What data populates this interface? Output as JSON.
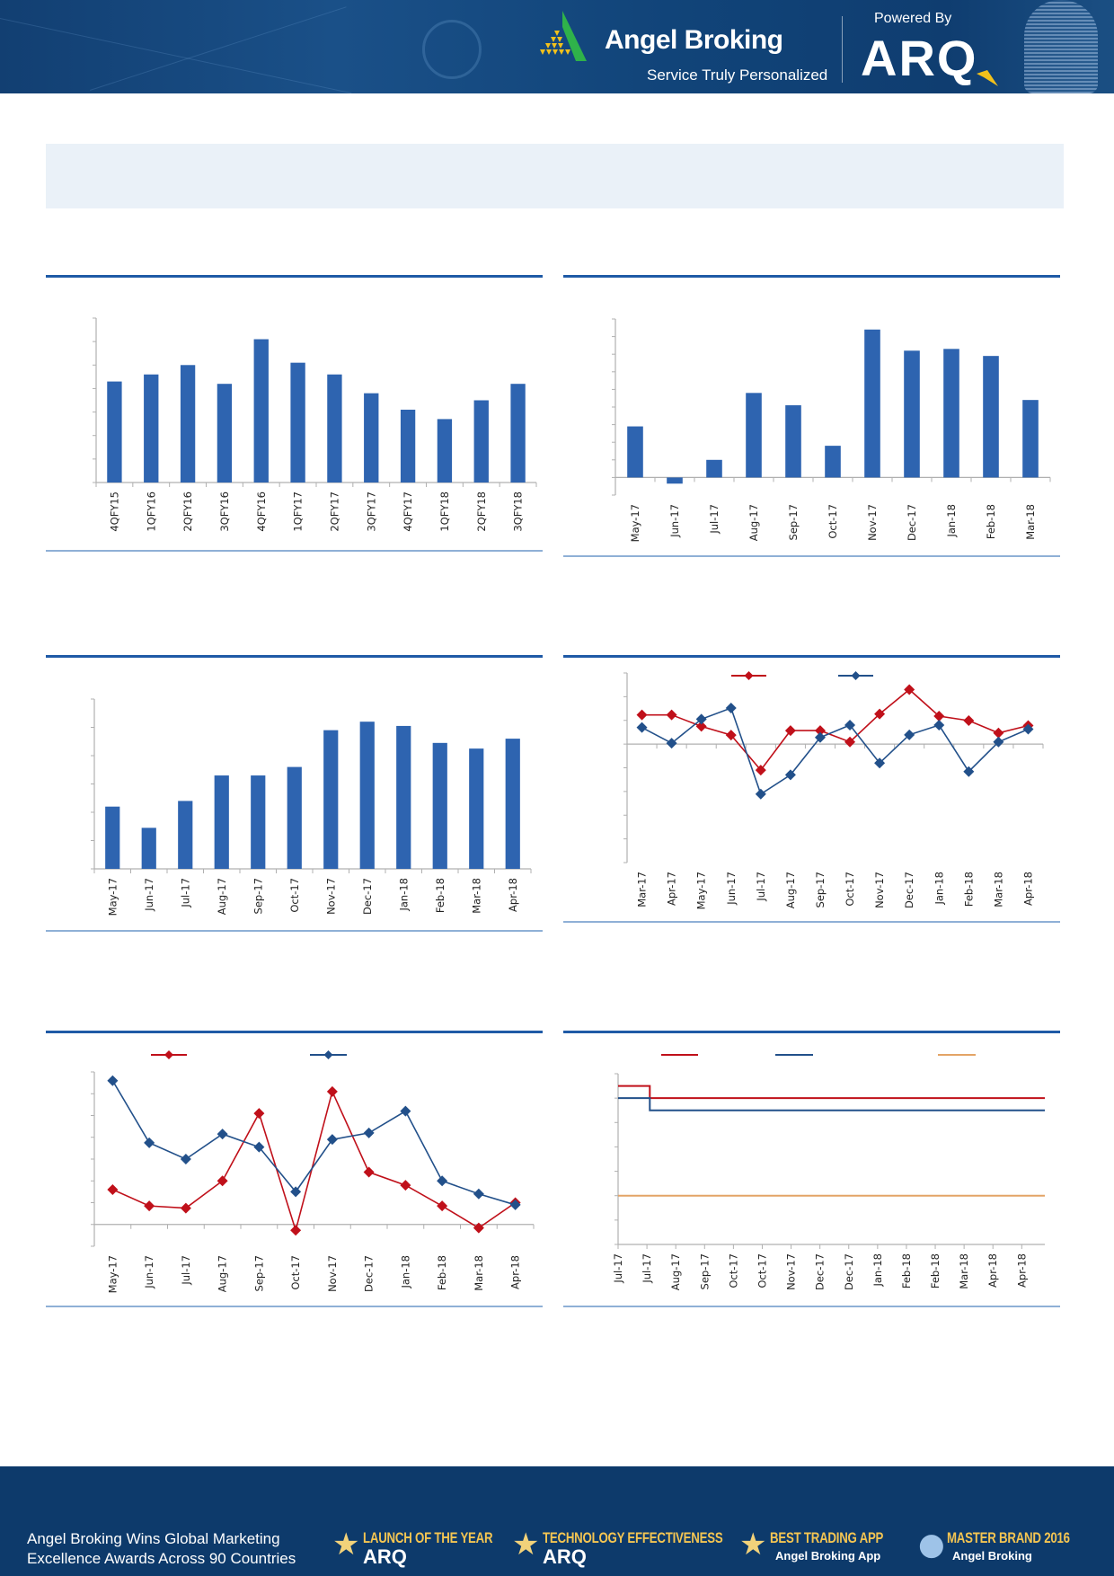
{
  "header": {
    "brand": "Angel Broking",
    "tagline": "Service Truly Personalized",
    "powered_by": "Powered By",
    "product": "ARQ"
  },
  "colors": {
    "header_bg": "#123f72",
    "bar": "#2e64b0",
    "series_red": "#c0101a",
    "series_blue": "#22508a",
    "series_orange": "#e3a466",
    "rule": "#1f5aa6",
    "summary_box": "#eaf1f8"
  },
  "chart_data": [
    {
      "type": "bar",
      "categories": [
        "4QFY15",
        "1QFY16",
        "2QFY16",
        "3QFY16",
        "4QFY16",
        "1QFY17",
        "2QFY17",
        "3QFY17",
        "4QFY17",
        "1QFY18",
        "2QFY18",
        "3QFY18"
      ],
      "values": [
        4.3,
        4.6,
        5.0,
        4.2,
        6.1,
        5.1,
        4.6,
        3.8,
        3.1,
        2.7,
        3.5,
        4.2
      ],
      "ylim": [
        0,
        7
      ],
      "grid": false
    },
    {
      "type": "bar",
      "categories": [
        "May-17",
        "Jun-17",
        "Jul-17",
        "Aug-17",
        "Sep-17",
        "Oct-17",
        "Nov-17",
        "Dec-17",
        "Jan-18",
        "Feb-18",
        "Mar-18"
      ],
      "values": [
        2.9,
        -0.35,
        1.0,
        4.8,
        4.1,
        1.8,
        8.4,
        7.2,
        7.3,
        6.9,
        4.4
      ],
      "ylim": [
        -1,
        9
      ],
      "grid": false
    },
    {
      "type": "bar",
      "categories": [
        "May-17",
        "Jun-17",
        "Jul-17",
        "Aug-17",
        "Sep-17",
        "Oct-17",
        "Nov-17",
        "Dec-17",
        "Jan-18",
        "Feb-18",
        "Mar-18",
        "Apr-18"
      ],
      "values": [
        2.2,
        1.45,
        2.4,
        3.3,
        3.3,
        3.6,
        4.9,
        5.2,
        5.05,
        4.45,
        4.25,
        4.6
      ],
      "ylim": [
        0,
        6
      ],
      "grid": false
    },
    {
      "type": "line",
      "categories": [
        "Mar-17",
        "Apr-17",
        "May-17",
        "Jun-17",
        "Jul-17",
        "Aug-17",
        "Sep-17",
        "Oct-17",
        "Nov-17",
        "Dec-17",
        "Jan-18",
        "Feb-18",
        "Mar-18",
        "Apr-18"
      ],
      "series": [
        {
          "color": "#c0101a",
          "values": [
            1.23,
            1.23,
            0.75,
            0.38,
            -1.1,
            0.57,
            0.57,
            0.09,
            1.27,
            2.3,
            1.18,
            0.99,
            0.47,
            0.78
          ]
        },
        {
          "color": "#22508a",
          "values": [
            0.7,
            0.04,
            1.05,
            1.52,
            -2.11,
            -1.3,
            0.28,
            0.8,
            -0.8,
            0.39,
            0.8,
            -1.16,
            0.09,
            0.63
          ]
        }
      ],
      "ylim": [
        -5,
        3
      ],
      "legend": "top-center",
      "markers": "diamond",
      "grid": false
    },
    {
      "type": "line",
      "categories": [
        "May-17",
        "Jun-17",
        "Jul-17",
        "Aug-17",
        "Sep-17",
        "Oct-17",
        "Nov-17",
        "Dec-17",
        "Jan-18",
        "Feb-18",
        "Mar-18",
        "Apr-18"
      ],
      "series": [
        {
          "color": "#c0101a",
          "values": [
            1.6,
            0.85,
            0.75,
            2.0,
            5.1,
            -0.27,
            6.1,
            2.4,
            1.8,
            0.85,
            -0.16,
            1.0
          ]
        },
        {
          "color": "#22508a",
          "values": [
            6.6,
            3.75,
            3.0,
            4.15,
            3.55,
            1.5,
            3.9,
            4.2,
            5.2,
            2.0,
            1.4,
            0.9
          ]
        }
      ],
      "ylim": [
        -1,
        7
      ],
      "legend": "top-center",
      "markers": "diamond",
      "grid": false
    },
    {
      "type": "line",
      "categories": [
        "Jul-17",
        "Jul-17",
        "Aug-17",
        "Sep-17",
        "Oct-17",
        "Oct-17",
        "Nov-17",
        "Dec-17",
        "Dec-17",
        "Jan-18",
        "Feb-18",
        "Feb-18",
        "Mar-18",
        "Apr-18",
        "Apr-18"
      ],
      "series": [
        {
          "color": "#c0101a",
          "values": [
            6.5,
            6.0,
            6.0,
            6.0,
            6.0,
            6.0,
            6.0,
            6.0,
            6.0,
            6.0,
            6.0,
            6.0,
            6.0,
            6.0,
            6.0
          ]
        },
        {
          "color": "#22508a",
          "values": [
            6.0,
            5.5,
            5.5,
            5.5,
            5.5,
            5.5,
            5.5,
            5.5,
            5.5,
            5.5,
            5.5,
            5.5,
            5.5,
            5.5,
            5.5
          ]
        },
        {
          "color": "#e3a466",
          "values": [
            2.0,
            2.0,
            2.0,
            2.0,
            2.0,
            2.0,
            2.0,
            2.0,
            2.0,
            2.0,
            2.0,
            2.0,
            2.0,
            2.0,
            2.0
          ]
        }
      ],
      "ylim": [
        0,
        7
      ],
      "legend": "top-center",
      "style": "step",
      "grid": false
    }
  ],
  "footer": {
    "line1": "Angel Broking Wins Global Marketing",
    "line2": "Excellence Awards Across 90 Countries",
    "awards": [
      {
        "title": "LAUNCH OF THE YEAR",
        "sub": "ARQ"
      },
      {
        "title": "TECHNOLOGY EFFECTIVENESS",
        "sub": "ARQ"
      },
      {
        "title": "BEST TRADING APP",
        "sub": "Angel Broking App"
      },
      {
        "title": "MASTER BRAND 2016",
        "sub": "Angel Broking"
      }
    ]
  }
}
